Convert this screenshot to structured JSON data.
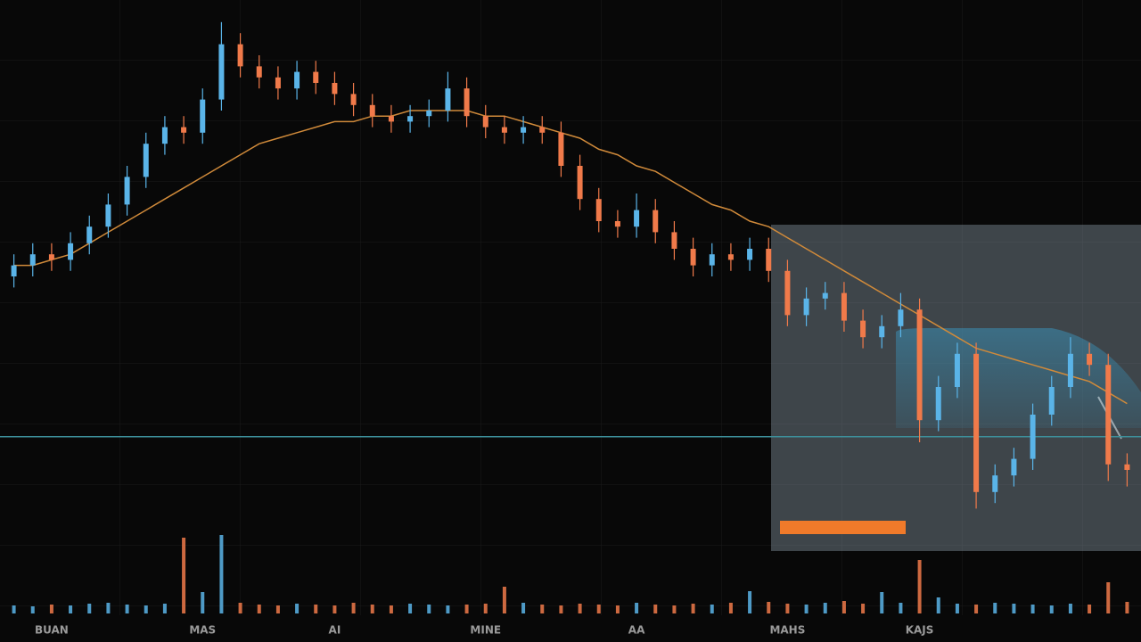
{
  "chart_data": {
    "type": "candlestick",
    "categories": [
      null,
      null,
      "BUAN",
      null,
      null,
      null,
      null,
      null,
      null,
      null,
      "MAS",
      null,
      null,
      null,
      null,
      null,
      null,
      "AI",
      null,
      null,
      null,
      null,
      null,
      null,
      null,
      "MINE",
      null,
      null,
      null,
      null,
      null,
      null,
      null,
      "AA",
      null,
      null,
      null,
      null,
      null,
      null,
      null,
      "MAHS",
      null,
      null,
      null,
      null,
      null,
      null,
      "KAJS",
      null,
      null,
      null,
      null,
      null,
      null,
      null,
      null,
      null,
      null,
      null
    ],
    "open": [
      50,
      52,
      54,
      53,
      56,
      59,
      63,
      68,
      74,
      77,
      76,
      82,
      92,
      88,
      86,
      84,
      87,
      85,
      83,
      81,
      79,
      78,
      79,
      80,
      84,
      79,
      77,
      76,
      77,
      76,
      70,
      64,
      60,
      59,
      62,
      58,
      55,
      52,
      54,
      53,
      55,
      51,
      43,
      46,
      47,
      42,
      39,
      41,
      44,
      24,
      30,
      36,
      11,
      14,
      17,
      25,
      30,
      36,
      34,
      16
    ],
    "high": [
      54,
      56,
      56,
      58,
      61,
      65,
      70,
      76,
      79,
      79,
      84,
      96,
      94,
      90,
      88,
      89,
      89,
      87,
      85,
      83,
      81,
      81,
      82,
      87,
      86,
      81,
      79,
      79,
      79,
      78,
      72,
      66,
      62,
      65,
      64,
      60,
      57,
      56,
      56,
      57,
      57,
      53,
      48,
      49,
      49,
      44,
      43,
      47,
      46,
      32,
      38,
      38,
      16,
      19,
      27,
      32,
      39,
      38,
      36,
      18
    ],
    "low": [
      48,
      50,
      51,
      51,
      54,
      57,
      61,
      66,
      72,
      74,
      74,
      80,
      86,
      84,
      82,
      82,
      83,
      81,
      79,
      77,
      76,
      76,
      77,
      78,
      77,
      75,
      74,
      74,
      74,
      68,
      62,
      58,
      57,
      57,
      56,
      53,
      50,
      50,
      51,
      51,
      49,
      41,
      41,
      44,
      40,
      37,
      37,
      39,
      20,
      22,
      28,
      8,
      9,
      12,
      15,
      23,
      28,
      32,
      13,
      12
    ],
    "close": [
      52,
      54,
      53,
      56,
      59,
      63,
      68,
      74,
      77,
      76,
      82,
      92,
      88,
      86,
      84,
      87,
      85,
      83,
      81,
      79,
      78,
      79,
      80,
      84,
      79,
      77,
      76,
      77,
      76,
      70,
      64,
      60,
      59,
      62,
      58,
      55,
      52,
      54,
      53,
      55,
      51,
      43,
      46,
      47,
      42,
      39,
      41,
      44,
      24,
      30,
      36,
      11,
      14,
      17,
      25,
      30,
      36,
      34,
      16,
      15
    ],
    "volume": [
      9,
      8,
      10,
      9,
      11,
      12,
      10,
      9,
      11,
      85,
      24,
      88,
      12,
      10,
      9,
      11,
      10,
      9,
      12,
      10,
      9,
      11,
      10,
      9,
      10,
      11,
      30,
      12,
      10,
      9,
      11,
      10,
      9,
      12,
      10,
      9,
      11,
      10,
      12,
      25,
      13,
      11,
      10,
      12,
      14,
      11,
      24,
      12,
      60,
      18,
      11,
      10,
      12,
      11,
      10,
      9,
      11,
      10,
      35,
      13
    ],
    "up_color": "#5ab4e8",
    "down_color": "#f07a4a",
    "moving_average": {
      "color": "#d08a3a",
      "values": [
        52,
        52,
        53,
        54,
        56,
        58,
        60,
        62,
        64,
        66,
        68,
        70,
        72,
        74,
        75,
        76,
        77,
        78,
        78,
        79,
        79,
        80,
        80,
        80,
        80,
        79,
        79,
        78,
        77,
        76,
        75,
        73,
        72,
        70,
        69,
        67,
        65,
        63,
        62,
        60,
        59,
        57,
        55,
        53,
        51,
        49,
        47,
        45,
        43,
        41,
        39,
        37,
        36,
        35,
        34,
        33,
        32,
        31,
        29,
        27
      ]
    },
    "reference_line": {
      "value": 21,
      "color": "#3d8f9a"
    },
    "ylim": [
      0,
      100
    ],
    "volume_ylim": [
      0,
      100
    ]
  }
}
